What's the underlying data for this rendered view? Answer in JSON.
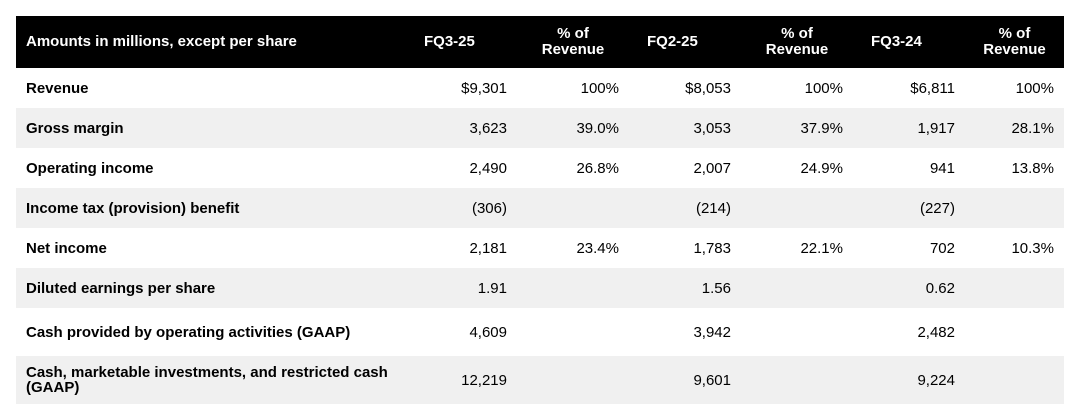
{
  "header": {
    "label": "Amounts in millions, except per share",
    "col1": "FQ3-25",
    "col2": "% of Revenue",
    "col3": "FQ2-25",
    "col4": "% of Revenue",
    "col5": "FQ3-24",
    "col6": "% of Revenue"
  },
  "rows": [
    {
      "label": "Revenue",
      "c1": "$9,301",
      "c2": "100%",
      "c3": "$8,053",
      "c4": "100%",
      "c5": "$6,811",
      "c6": "100%"
    },
    {
      "label": "Gross margin",
      "c1": "3,623",
      "c2": "39.0%",
      "c3": "3,053",
      "c4": "37.9%",
      "c5": "1,917",
      "c6": "28.1%"
    },
    {
      "label": "Operating income",
      "c1": "2,490",
      "c2": "26.8%",
      "c3": "2,007",
      "c4": "24.9%",
      "c5": "941",
      "c6": "13.8%"
    },
    {
      "label": "Income tax (provision) benefit",
      "c1": "(306)",
      "c2": "",
      "c3": "(214)",
      "c4": "",
      "c5": "(227)",
      "c6": ""
    },
    {
      "label": "Net income",
      "c1": "2,181",
      "c2": "23.4%",
      "c3": "1,783",
      "c4": "22.1%",
      "c5": "702",
      "c6": "10.3%"
    },
    {
      "label": "Diluted earnings per share",
      "c1": "1.91",
      "c2": "",
      "c3": "1.56",
      "c4": "",
      "c5": "0.62",
      "c6": ""
    },
    {
      "label": "Cash provided by operating activities (GAAP)",
      "c1": "4,609",
      "c2": "",
      "c3": "3,942",
      "c4": "",
      "c5": "2,482",
      "c6": ""
    },
    {
      "label": "Cash, marketable investments, and restricted cash (GAAP)",
      "c1": "12,219",
      "c2": "",
      "c3": "9,601",
      "c4": "",
      "c5": "9,224",
      "c6": ""
    }
  ]
}
